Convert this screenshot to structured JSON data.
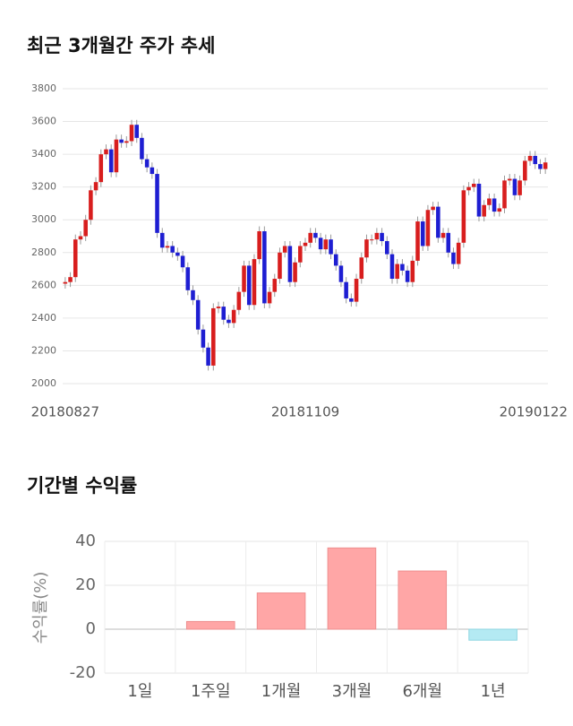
{
  "chart_data": [
    {
      "type": "candlestick",
      "title": "최근 3개월간 주가 추세",
      "categories": [
        "20180827",
        null,
        null,
        null,
        null,
        null,
        null,
        null,
        null,
        null,
        null,
        null,
        null,
        null,
        null,
        null,
        null,
        null,
        null,
        null,
        null,
        null,
        null,
        null,
        null,
        null,
        null,
        null,
        null,
        null,
        null,
        null,
        null,
        null,
        null,
        null,
        null,
        null,
        null,
        null,
        null,
        null,
        null,
        null,
        null,
        null,
        null,
        "20181109",
        null,
        null,
        null,
        null,
        null,
        null,
        null,
        null,
        null,
        null,
        null,
        null,
        null,
        null,
        null,
        null,
        null,
        null,
        null,
        null,
        null,
        null,
        null,
        null,
        null,
        null,
        null,
        null,
        null,
        null,
        null,
        null,
        null,
        null,
        null,
        null,
        null,
        null,
        null,
        null,
        null,
        null,
        null,
        null,
        null,
        null,
        "20190122"
      ],
      "open": [
        2610,
        2620,
        2650,
        2880,
        2900,
        3000,
        3180,
        3230,
        3400,
        3430,
        3290,
        3490,
        3470,
        3480,
        3580,
        3500,
        3370,
        3320,
        3280,
        2920,
        2830,
        2840,
        2800,
        2780,
        2710,
        2570,
        2510,
        2330,
        2220,
        2110,
        2460,
        2470,
        2390,
        2370,
        2450,
        2560,
        2720,
        2480,
        2760,
        2930,
        2490,
        2560,
        2640,
        2800,
        2840,
        2620,
        2740,
        2840,
        2860,
        2920,
        2890,
        2820,
        2880,
        2790,
        2720,
        2620,
        2520,
        2500,
        2640,
        2770,
        2880,
        2880,
        2920,
        2870,
        2790,
        2640,
        2730,
        2690,
        2620,
        2750,
        2990,
        2840,
        3060,
        3080,
        2890,
        2920,
        2800,
        2730,
        2860,
        3180,
        3200,
        3220,
        3020,
        3090,
        3130,
        3050,
        3070,
        3240,
        3250,
        3150,
        3240,
        3360,
        3390,
        3340,
        3310
      ],
      "high": [
        2650,
        2680,
        2910,
        2930,
        3030,
        3210,
        3260,
        3430,
        3460,
        3460,
        3520,
        3520,
        3510,
        3610,
        3610,
        3530,
        3400,
        3350,
        3310,
        2950,
        2870,
        2870,
        2830,
        2810,
        2740,
        2600,
        2540,
        2360,
        2250,
        2490,
        2500,
        2500,
        2420,
        2480,
        2590,
        2750,
        2750,
        2790,
        2960,
        2960,
        2590,
        2670,
        2830,
        2870,
        2870,
        2770,
        2870,
        2890,
        2950,
        2950,
        2920,
        2910,
        2910,
        2820,
        2750,
        2650,
        2550,
        2670,
        2800,
        2910,
        2910,
        2950,
        2950,
        2900,
        2820,
        2760,
        2760,
        2720,
        2780,
        3020,
        3020,
        3090,
        3110,
        3110,
        2950,
        2950,
        2830,
        2890,
        3210,
        3230,
        3250,
        3250,
        3120,
        3160,
        3160,
        3100,
        3270,
        3280,
        3280,
        3270,
        3390,
        3420,
        3420,
        3370,
        3380
      ],
      "low": [
        2580,
        2590,
        2620,
        2850,
        2870,
        2970,
        3150,
        3200,
        3370,
        3260,
        3260,
        3440,
        3440,
        3450,
        3470,
        3340,
        3290,
        3250,
        2890,
        2800,
        2800,
        2770,
        2750,
        2680,
        2540,
        2480,
        2300,
        2190,
        2080,
        2080,
        2430,
        2360,
        2340,
        2340,
        2420,
        2530,
        2450,
        2450,
        2730,
        2460,
        2460,
        2530,
        2610,
        2770,
        2590,
        2590,
        2710,
        2810,
        2830,
        2860,
        2790,
        2790,
        2760,
        2690,
        2590,
        2490,
        2470,
        2470,
        2610,
        2740,
        2850,
        2850,
        2840,
        2760,
        2610,
        2610,
        2660,
        2590,
        2590,
        2720,
        2810,
        2810,
        3030,
        2860,
        2860,
        2770,
        2700,
        2700,
        2830,
        3150,
        3170,
        2990,
        2990,
        3060,
        3020,
        3020,
        3040,
        3210,
        3120,
        3120,
        3210,
        3330,
        3310,
        3280,
        3280
      ],
      "close": [
        2620,
        2650,
        2880,
        2900,
        3000,
        3180,
        3230,
        3400,
        3430,
        3290,
        3490,
        3470,
        3480,
        3580,
        3500,
        3370,
        3320,
        3280,
        2920,
        2830,
        2840,
        2800,
        2780,
        2710,
        2570,
        2510,
        2330,
        2220,
        2110,
        2460,
        2470,
        2390,
        2370,
        2450,
        2560,
        2720,
        2480,
        2760,
        2930,
        2490,
        2560,
        2640,
        2800,
        2840,
        2620,
        2740,
        2840,
        2860,
        2920,
        2890,
        2820,
        2880,
        2790,
        2720,
        2620,
        2520,
        2500,
        2640,
        2770,
        2880,
        2880,
        2920,
        2870,
        2790,
        2640,
        2730,
        2690,
        2620,
        2750,
        2990,
        2840,
        3060,
        3080,
        2890,
        2920,
        2800,
        2730,
        2860,
        3180,
        3200,
        3220,
        3020,
        3090,
        3130,
        3050,
        3070,
        3240,
        3250,
        3150,
        3240,
        3360,
        3390,
        3340,
        3310,
        3350
      ],
      "up_color": "#d81e1e",
      "down_color": "#1e1ed2",
      "ylim": [
        2000,
        3800
      ],
      "yticks": [
        2000,
        2200,
        2400,
        2600,
        2800,
        3000,
        3200,
        3400,
        3600,
        3800
      ],
      "grid": true
    },
    {
      "type": "bar",
      "title": "기간별 수익률",
      "ylabel": "수익률(%)",
      "categories": [
        "1일",
        "1주일",
        "1개월",
        "3개월",
        "6개월",
        "1년"
      ],
      "values": [
        0,
        3.5,
        16.5,
        37,
        26.5,
        -5
      ],
      "color": "#ffa6a6",
      "negative_color": "#b4eaf3",
      "ylim": [
        -20,
        40
      ],
      "yticks": [
        -20,
        0,
        20,
        40
      ],
      "grid": true
    }
  ]
}
